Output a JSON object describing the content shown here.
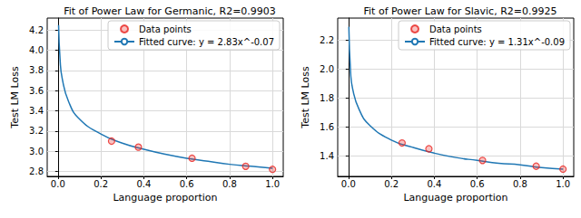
{
  "chart_data": [
    {
      "type": "scatter_line",
      "title": "Fit of Power Law for Germanic, R2=0.9903",
      "x_label": "Language proportion",
      "y_label": "Test LM Loss",
      "xlim": [
        -0.05,
        1.05
      ],
      "xticks": [
        {
          "value": 0,
          "label": "0.0"
        },
        0.2,
        0.4,
        0.6,
        0.8,
        {
          "value": 1,
          "label": "1.0"
        }
      ],
      "ylim": [
        2.75,
        4.32
      ],
      "yticks": [
        2.8,
        {
          "value": 3,
          "label": "3.0"
        },
        3.2,
        3.4,
        3.6,
        3.8,
        {
          "value": 4,
          "label": "4.0"
        },
        4.2
      ],
      "grid": true,
      "legend": "upper right",
      "series": [
        {
          "name": "Data points",
          "type": "scatter",
          "marker": "circle",
          "color": "#e8231f",
          "x": [
            0.25,
            0.375,
            0.625,
            0.875,
            1.0
          ],
          "values": [
            3.1,
            3.04,
            2.93,
            2.85,
            2.82
          ]
        },
        {
          "name": "Fitted curve: y = 2.83x^-0.07",
          "type": "line",
          "line_style": "solid",
          "color": "#1f77b4",
          "x": [
            0.003,
            0.01,
            0.02,
            0.05,
            0.1,
            0.2,
            0.3,
            0.4,
            0.5,
            0.6,
            0.7,
            0.8,
            0.9,
            1.0
          ],
          "values": [
            4.25,
            3.91,
            3.72,
            3.49,
            3.32,
            3.17,
            3.08,
            3.02,
            2.97,
            2.93,
            2.9,
            2.87,
            2.85,
            2.83
          ]
        }
      ]
    },
    {
      "type": "scatter_line",
      "title": "Fit of Power Law for Slavic, R2=0.9925",
      "x_label": "Language proportion",
      "y_label": "Test LM Loss",
      "xlim": [
        -0.05,
        1.05
      ],
      "xticks": [
        {
          "value": 0,
          "label": "0.0"
        },
        0.2,
        0.4,
        0.6,
        0.8,
        {
          "value": 1,
          "label": "1.0"
        }
      ],
      "ylim": [
        1.26,
        2.35
      ],
      "yticks": [
        1.4,
        1.6,
        1.8,
        {
          "value": 2,
          "label": "2.0"
        },
        2.2
      ],
      "grid": true,
      "legend": "upper right",
      "series": [
        {
          "name": "Data points",
          "type": "scatter",
          "marker": "circle",
          "color": "#e8231f",
          "x": [
            0.25,
            0.375,
            0.625,
            0.875,
            1.0
          ],
          "values": [
            1.49,
            1.45,
            1.37,
            1.33,
            1.31
          ]
        },
        {
          "name": "Fitted curve: y = 1.31x^-0.09",
          "type": "line",
          "line_style": "solid",
          "color": "#1f77b4",
          "x": [
            0.002,
            0.01,
            0.02,
            0.05,
            0.1,
            0.2,
            0.3,
            0.4,
            0.5,
            0.6,
            0.7,
            0.8,
            0.9,
            1.0
          ],
          "values": [
            2.29,
            1.98,
            1.86,
            1.72,
            1.61,
            1.51,
            1.46,
            1.42,
            1.39,
            1.37,
            1.35,
            1.34,
            1.32,
            1.31
          ]
        }
      ]
    }
  ]
}
